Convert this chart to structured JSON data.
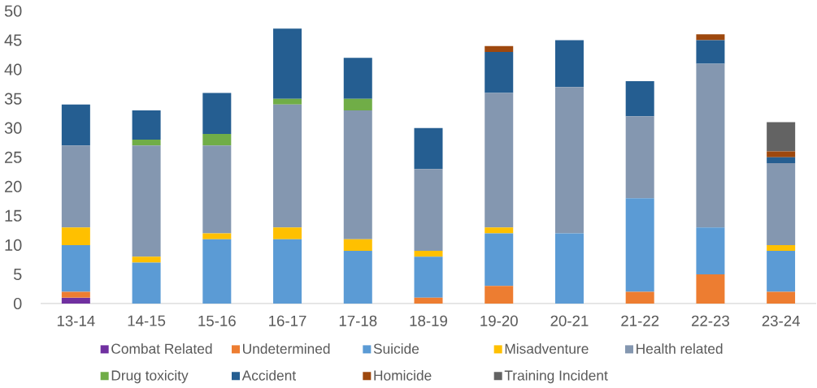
{
  "chart_data": {
    "type": "bar",
    "stacked": true,
    "legend": "bottom",
    "categories": [
      "13-14",
      "14-15",
      "15-16",
      "16-17",
      "17-18",
      "18-19",
      "19-20",
      "20-21",
      "21-22",
      "22-23",
      "23-24"
    ],
    "ylim": [
      0,
      50
    ],
    "yticks": [
      0,
      5,
      10,
      15,
      20,
      25,
      30,
      35,
      40,
      45,
      50
    ],
    "series": [
      {
        "name": "Combat Related",
        "color": "#7030a0",
        "values": [
          1,
          0,
          0,
          0,
          0,
          0,
          0,
          0,
          0,
          0,
          0
        ]
      },
      {
        "name": "Undetermined",
        "color": "#ed7d31",
        "values": [
          1,
          0,
          0,
          0,
          0,
          1,
          3,
          0,
          2,
          5,
          2
        ]
      },
      {
        "name": "Suicide",
        "color": "#5b9bd5",
        "values": [
          8,
          7,
          11,
          11,
          9,
          7,
          9,
          12,
          16,
          8,
          7
        ]
      },
      {
        "name": "Misadventure",
        "color": "#ffc000",
        "values": [
          3,
          1,
          1,
          2,
          2,
          1,
          1,
          0,
          0,
          0,
          1
        ]
      },
      {
        "name": "Health related",
        "color": "#8497b0",
        "values": [
          14,
          19,
          15,
          21,
          22,
          14,
          23,
          25,
          14,
          28,
          14
        ]
      },
      {
        "name": "Drug toxicity",
        "color": "#70ad47",
        "values": [
          0,
          1,
          2,
          1,
          2,
          0,
          0,
          0,
          0,
          0,
          0
        ]
      },
      {
        "name": "Accident",
        "color": "#255e91",
        "values": [
          7,
          5,
          7,
          12,
          7,
          7,
          7,
          8,
          6,
          4,
          1
        ]
      },
      {
        "name": "Homicide",
        "color": "#9e480e",
        "values": [
          0,
          0,
          0,
          0,
          0,
          0,
          1,
          0,
          0,
          1,
          1
        ]
      },
      {
        "name": "Training Incident",
        "color": "#636363",
        "values": [
          0,
          0,
          0,
          0,
          0,
          0,
          0,
          0,
          0,
          0,
          5
        ]
      }
    ]
  }
}
